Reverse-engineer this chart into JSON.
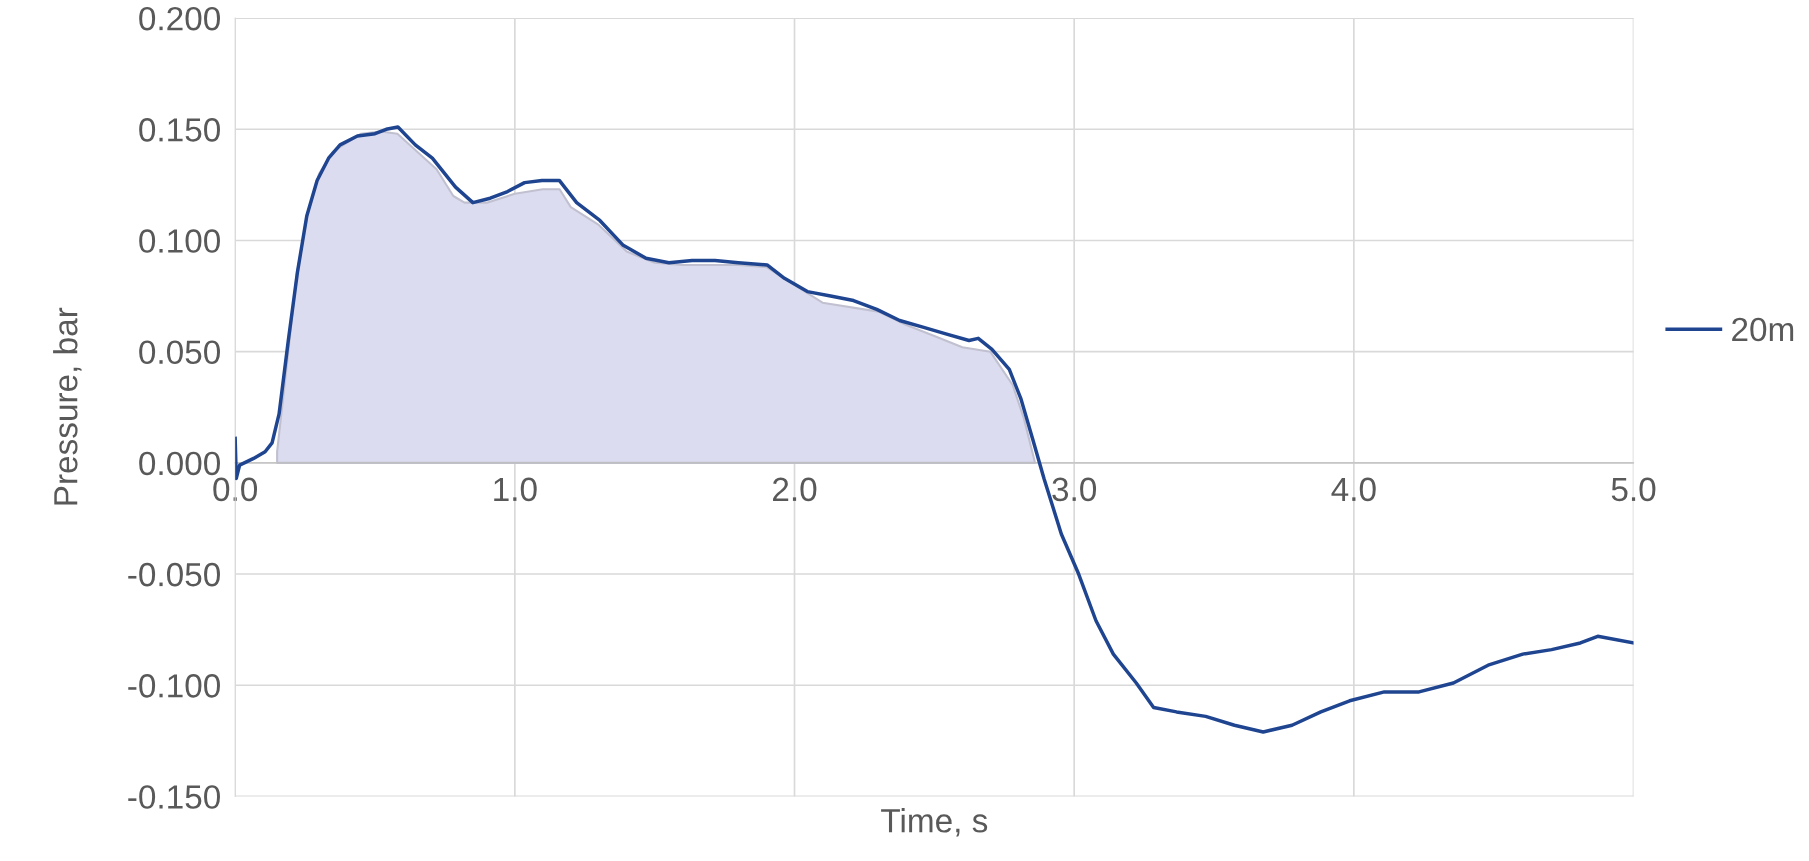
{
  "chart_data": {
    "type": "line",
    "xlabel": "Time, s",
    "ylabel": "Pressure, bar",
    "xlim": [
      0,
      5
    ],
    "ylim": [
      -0.15,
      0.2
    ],
    "xticks": [
      {
        "value": 0,
        "label": "0.0"
      },
      {
        "value": 1,
        "label": "1.0"
      },
      {
        "value": 2,
        "label": "2.0"
      },
      {
        "value": 3,
        "label": "3.0"
      },
      {
        "value": 4,
        "label": "4.0"
      },
      {
        "value": 5,
        "label": "5.0"
      }
    ],
    "yticks": [
      {
        "value": -0.15,
        "label": "-0.150"
      },
      {
        "value": -0.1,
        "label": "-0.100"
      },
      {
        "value": -0.05,
        "label": "-0.050"
      },
      {
        "value": 0,
        "label": "0.000"
      },
      {
        "value": 0.05,
        "label": "0.050"
      },
      {
        "value": 0.1,
        "label": "0.100"
      },
      {
        "value": 0.15,
        "label": "0.150"
      },
      {
        "value": 0.2,
        "label": "0.200"
      }
    ],
    "grid": true,
    "legend": "right",
    "series": [
      {
        "type": "area",
        "color": "#dcdcf0",
        "x": [
          0.15,
          0.19,
          0.22,
          0.26,
          0.3,
          0.35,
          0.45,
          0.52,
          0.58,
          0.65,
          0.72,
          0.78,
          0.82,
          0.9,
          1.0,
          1.1,
          1.16,
          1.2,
          1.3,
          1.4,
          1.5,
          1.6,
          1.8,
          1.9,
          2.0,
          2.1,
          2.3,
          2.4,
          2.5,
          2.6,
          2.7,
          2.78,
          2.82,
          2.86
        ],
        "values": [
          0.005,
          0.05,
          0.085,
          0.112,
          0.13,
          0.14,
          0.148,
          0.149,
          0.148,
          0.14,
          0.132,
          0.12,
          0.117,
          0.117,
          0.121,
          0.123,
          0.123,
          0.115,
          0.107,
          0.095,
          0.09,
          0.089,
          0.089,
          0.088,
          0.08,
          0.072,
          0.068,
          0.062,
          0.057,
          0.052,
          0.05,
          0.035,
          0.02,
          0.0
        ]
      },
      {
        "name": "20m",
        "color": "#1f4591",
        "x": [
          0,
          0.004,
          0.016,
          0.066,
          0.107,
          0.132,
          0.157,
          0.19,
          0.223,
          0.256,
          0.293,
          0.334,
          0.375,
          0.437,
          0.5,
          0.54,
          0.582,
          0.644,
          0.705,
          0.788,
          0.85,
          0.912,
          0.974,
          1.035,
          1.097,
          1.159,
          1.221,
          1.304,
          1.386,
          1.469,
          1.551,
          1.634,
          1.716,
          1.799,
          1.902,
          1.964,
          2.046,
          2.129,
          2.211,
          2.294,
          2.376,
          2.459,
          2.541,
          2.624,
          2.657,
          2.706,
          2.768,
          2.809,
          2.851,
          2.892,
          2.954,
          3.016,
          3.078,
          3.14,
          3.222,
          3.284,
          3.366,
          3.47,
          3.573,
          3.676,
          3.779,
          3.882,
          3.985,
          4.109,
          4.233,
          4.356,
          4.48,
          4.604,
          4.707,
          4.81,
          4.872,
          5.0
        ],
        "values": [
          0.011,
          -0.007,
          -0.001,
          0.002,
          0.005,
          0.009,
          0.022,
          0.055,
          0.086,
          0.111,
          0.127,
          0.137,
          0.143,
          0.147,
          0.148,
          0.15,
          0.151,
          0.143,
          0.137,
          0.124,
          0.117,
          0.119,
          0.122,
          0.126,
          0.127,
          0.127,
          0.117,
          0.109,
          0.098,
          0.092,
          0.09,
          0.091,
          0.091,
          0.09,
          0.089,
          0.083,
          0.077,
          0.075,
          0.073,
          0.069,
          0.064,
          0.061,
          0.058,
          0.055,
          0.056,
          0.051,
          0.042,
          0.029,
          0.011,
          -0.007,
          -0.032,
          -0.05,
          -0.071,
          -0.086,
          -0.099,
          -0.11,
          -0.112,
          -0.114,
          -0.118,
          -0.121,
          -0.118,
          -0.112,
          -0.107,
          -0.103,
          -0.103,
          -0.099,
          -0.091,
          -0.086,
          -0.084,
          -0.081,
          -0.078,
          -0.081
        ]
      }
    ]
  }
}
